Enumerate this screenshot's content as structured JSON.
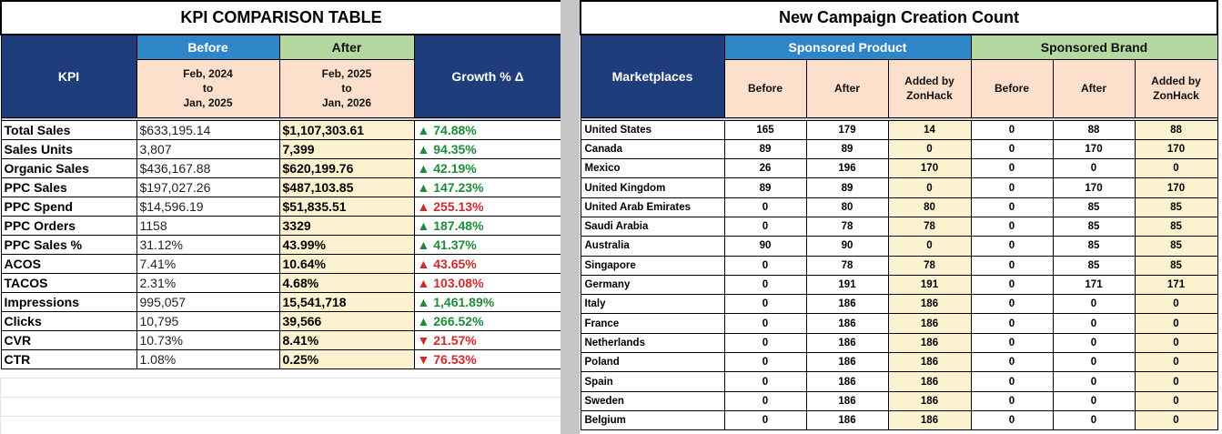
{
  "kpi": {
    "title": "KPI COMPARISON TABLE",
    "header": {
      "kpi": "KPI",
      "before": "Before",
      "after": "After",
      "before_range": [
        "Feb, 2024",
        "to",
        "Jan, 2025"
      ],
      "after_range": [
        "Feb, 2025",
        "to",
        "Jan, 2026"
      ],
      "growth": "Growth % Δ"
    },
    "rows": [
      {
        "name": "Total Sales",
        "before": "$633,195.14",
        "after": "$1,107,303.61",
        "growth": "▲ 74.88%",
        "trend": "up"
      },
      {
        "name": "Sales Units",
        "before": "3,807",
        "after": "7,399",
        "growth": "▲ 94.35%",
        "trend": "up"
      },
      {
        "name": "Organic Sales",
        "before": "$436,167.88",
        "after": "$620,199.76",
        "growth": "▲ 42.19%",
        "trend": "up"
      },
      {
        "name": "PPC Sales",
        "before": "$197,027.26",
        "after": "$487,103.85",
        "growth": "▲ 147.23%",
        "trend": "up"
      },
      {
        "name": "PPC Spend",
        "before": "$14,596.19",
        "after": "$51,835.51",
        "growth": "▲ 255.13%",
        "trend": "down"
      },
      {
        "name": "PPC Orders",
        "before": "1158",
        "after": "3329",
        "growth": "▲ 187.48%",
        "trend": "up"
      },
      {
        "name": "PPC Sales %",
        "before": "31.12%",
        "after": "43.99%",
        "growth": "▲ 41.37%",
        "trend": "up"
      },
      {
        "name": "ACOS",
        "before": "7.41%",
        "after": "10.64%",
        "growth": "▲ 43.65%",
        "trend": "down"
      },
      {
        "name": "TACOS",
        "before": "2.31%",
        "after": "4.68%",
        "growth": "▲ 103.08%",
        "trend": "down"
      },
      {
        "name": "Impressions",
        "before": "995,057",
        "after": "15,541,718",
        "growth": "▲ 1,461.89%",
        "trend": "up"
      },
      {
        "name": "Clicks",
        "before": "10,795",
        "after": "39,566",
        "growth": "▲ 266.52%",
        "trend": "up"
      },
      {
        "name": "CVR",
        "before": "10.73%",
        "after": "8.41%",
        "growth": "▼ 21.57%",
        "trend": "down"
      },
      {
        "name": "CTR",
        "before": "1.08%",
        "after": "0.25%",
        "growth": "▼ 76.53%",
        "trend": "down"
      }
    ]
  },
  "campaign": {
    "title": "New Campaign Creation Count",
    "header": {
      "marketplaces": "Marketplaces",
      "sp": "Sponsored Product",
      "sb": "Sponsored Brand",
      "before": "Before",
      "after": "After",
      "added": [
        "Added by",
        "ZonHack"
      ]
    },
    "rows": [
      {
        "market": "United States",
        "sp_before": "165",
        "sp_after": "179",
        "sp_added": "14",
        "sb_before": "0",
        "sb_after": "88",
        "sb_added": "88"
      },
      {
        "market": "Canada",
        "sp_before": "89",
        "sp_after": "89",
        "sp_added": "0",
        "sb_before": "0",
        "sb_after": "170",
        "sb_added": "170"
      },
      {
        "market": "Mexico",
        "sp_before": "26",
        "sp_after": "196",
        "sp_added": "170",
        "sb_before": "0",
        "sb_after": "0",
        "sb_added": "0"
      },
      {
        "market": "United Kingdom",
        "sp_before": "89",
        "sp_after": "89",
        "sp_added": "0",
        "sb_before": "0",
        "sb_after": "170",
        "sb_added": "170"
      },
      {
        "market": "United Arab Emirates",
        "sp_before": "0",
        "sp_after": "80",
        "sp_added": "80",
        "sb_before": "0",
        "sb_after": "85",
        "sb_added": "85"
      },
      {
        "market": "Saudi Arabia",
        "sp_before": "0",
        "sp_after": "78",
        "sp_added": "78",
        "sb_before": "0",
        "sb_after": "85",
        "sb_added": "85"
      },
      {
        "market": "Australia",
        "sp_before": "90",
        "sp_after": "90",
        "sp_added": "0",
        "sb_before": "0",
        "sb_after": "85",
        "sb_added": "85"
      },
      {
        "market": "Singapore",
        "sp_before": "0",
        "sp_after": "78",
        "sp_added": "78",
        "sb_before": "0",
        "sb_after": "85",
        "sb_added": "85"
      },
      {
        "market": "Germany",
        "sp_before": "0",
        "sp_after": "191",
        "sp_added": "191",
        "sb_before": "0",
        "sb_after": "171",
        "sb_added": "171"
      },
      {
        "market": "Italy",
        "sp_before": "0",
        "sp_after": "186",
        "sp_added": "186",
        "sb_before": "0",
        "sb_after": "0",
        "sb_added": "0"
      },
      {
        "market": "France",
        "sp_before": "0",
        "sp_after": "186",
        "sp_added": "186",
        "sb_before": "0",
        "sb_after": "0",
        "sb_added": "0"
      },
      {
        "market": "Netherlands",
        "sp_before": "0",
        "sp_after": "186",
        "sp_added": "186",
        "sb_before": "0",
        "sb_after": "0",
        "sb_added": "0"
      },
      {
        "market": "Poland",
        "sp_before": "0",
        "sp_after": "186",
        "sp_added": "186",
        "sb_before": "0",
        "sb_after": "0",
        "sb_added": "0"
      },
      {
        "market": "Spain",
        "sp_before": "0",
        "sp_after": "186",
        "sp_added": "186",
        "sb_before": "0",
        "sb_after": "0",
        "sb_added": "0"
      },
      {
        "market": "Sweden",
        "sp_before": "0",
        "sp_after": "186",
        "sp_added": "186",
        "sb_before": "0",
        "sb_after": "0",
        "sb_added": "0"
      },
      {
        "market": "Belgium",
        "sp_before": "0",
        "sp_after": "186",
        "sp_added": "186",
        "sb_before": "0",
        "sb_after": "0",
        "sb_added": "0"
      }
    ]
  },
  "colors": {
    "navy": "#1f3d7a",
    "blue": "#2e86c8",
    "green_header": "#b3d9a0",
    "peach": "#fce0cc",
    "cream": "#fdf2cf",
    "up": "#1f8b3a",
    "down": "#d12a2a"
  }
}
